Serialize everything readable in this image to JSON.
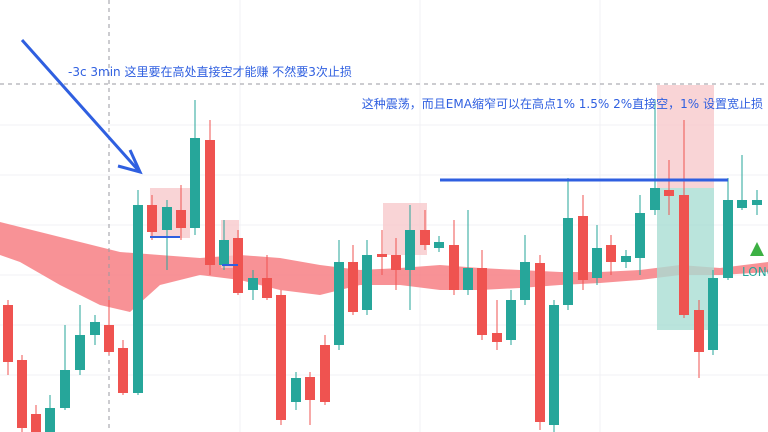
{
  "annotations": {
    "left_note": "-3c  3min 这里要在高处直接空才能赚 不然要3次止损",
    "right_note": "这种震荡，而且EMA缩窄可以在高点1% 1.5% 2%直接空，1% 设置宽止损"
  },
  "signal": {
    "label": "LONG"
  }
}
